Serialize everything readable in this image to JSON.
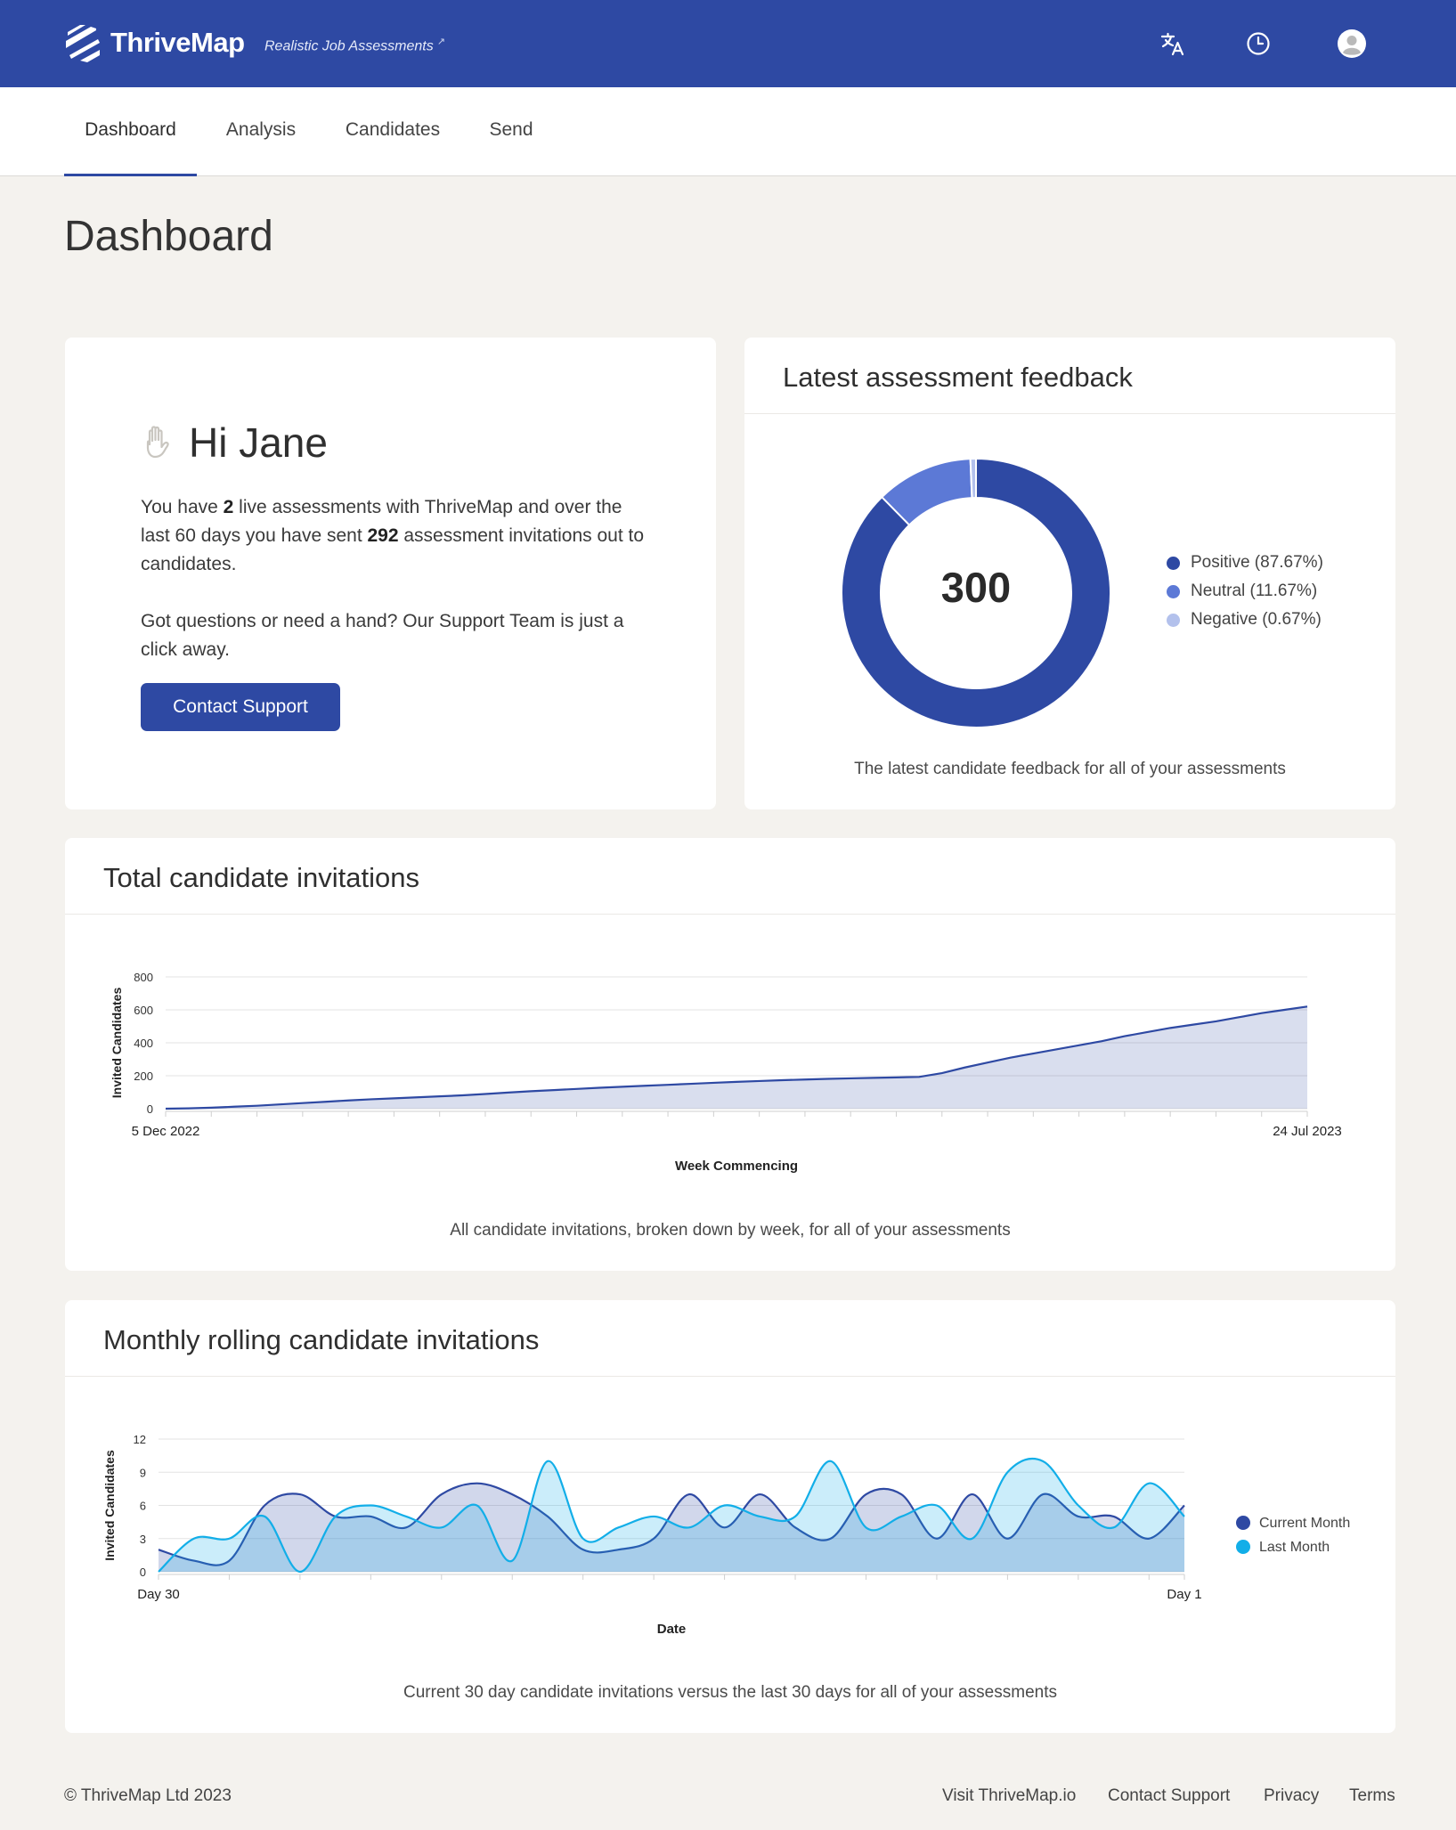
{
  "header": {
    "brand": "ThriveMap",
    "tagline": "Realistic Job Assessments"
  },
  "nav": {
    "tabs": [
      {
        "label": "Dashboard",
        "active": true
      },
      {
        "label": "Analysis",
        "active": false
      },
      {
        "label": "Candidates",
        "active": false
      },
      {
        "label": "Send",
        "active": false
      }
    ]
  },
  "page": {
    "title": "Dashboard"
  },
  "welcome": {
    "greeting": "Hi Jane",
    "t1": "You have ",
    "live_count": "2",
    "t2": " live assessments with ThriveMap and over the last 60 days you have sent ",
    "invite_count": "292",
    "t3": " assessment invitations out to candidates.",
    "support_text": "Got questions or need a hand? Our Support Team is just a click away.",
    "button": "Contact Support"
  },
  "feedback": {
    "title": "Latest assessment feedback",
    "total": "300",
    "caption": "The latest candidate feedback for all of your assessments"
  },
  "totals_card": {
    "title": "Total candidate invitations",
    "caption": "All candidate invitations, broken down by week, for all of your assessments"
  },
  "rolling_card": {
    "title": "Monthly rolling candidate invitations",
    "caption": "Current 30 day candidate invitations versus the last 30 days for all of your assessments"
  },
  "footer": {
    "copyright": "© ThriveMap Ltd 2023",
    "links": [
      "Visit ThriveMap.io",
      "Contact Support",
      "Privacy",
      "Terms"
    ]
  },
  "colors": {
    "brand": "#2e49a3",
    "positive": "#2e49a3",
    "neutral": "#5c79d6",
    "negative": "#b3c1ec",
    "current_month": "#2e49a3",
    "last_month": "#12aee8"
  },
  "chart_data": [
    {
      "type": "pie",
      "categories": [
        "Positive (87.67%)",
        "Neutral (11.67%)",
        "Negative (0.67%)"
      ],
      "values": [
        87.67,
        11.67,
        0.67
      ],
      "center_label": "300",
      "legend": "right"
    },
    {
      "type": "area",
      "xlabel": "Week Commencing",
      "ylabel": "Invited Candidates",
      "x_tick_labels": [
        "5 Dec 2022",
        "24 Jul 2023"
      ],
      "y_ticks": [
        0,
        200,
        400,
        600,
        800
      ],
      "ylim": [
        0,
        800
      ],
      "grid": true,
      "series": [
        {
          "values": [
            0,
            2,
            6,
            12,
            18,
            26,
            34,
            42,
            50,
            57,
            63,
            69,
            75,
            81,
            89,
            98,
            106,
            113,
            120,
            127,
            133,
            139,
            145,
            151,
            157,
            163,
            168,
            173,
            177,
            181,
            184,
            187,
            190,
            193,
            216,
            250,
            280,
            310,
            335,
            360,
            385,
            410,
            440,
            465,
            490,
            510,
            530,
            555,
            580,
            600,
            620
          ]
        }
      ]
    },
    {
      "type": "area",
      "xlabel": "Date",
      "ylabel": "Invited Candidates",
      "x_tick_labels": [
        "Day 30",
        "Day 1"
      ],
      "y_ticks": [
        0,
        3,
        6,
        9,
        12
      ],
      "ylim": [
        0,
        12
      ],
      "grid": true,
      "legend": "right",
      "series": [
        {
          "name": "Current Month",
          "values": [
            2,
            1,
            1,
            6,
            7,
            5,
            5,
            4,
            7,
            8,
            7,
            5,
            2,
            2,
            3,
            7,
            4,
            7,
            4,
            3,
            7,
            7,
            3,
            7,
            3,
            7,
            5,
            5,
            3,
            6
          ]
        },
        {
          "name": "Last Month",
          "values": [
            0,
            3,
            3,
            5,
            0,
            5,
            6,
            5,
            4,
            6,
            1,
            10,
            3,
            4,
            5,
            4,
            6,
            5,
            5,
            10,
            4,
            5,
            6,
            3,
            9,
            10,
            6,
            4,
            8,
            5
          ]
        }
      ]
    }
  ]
}
